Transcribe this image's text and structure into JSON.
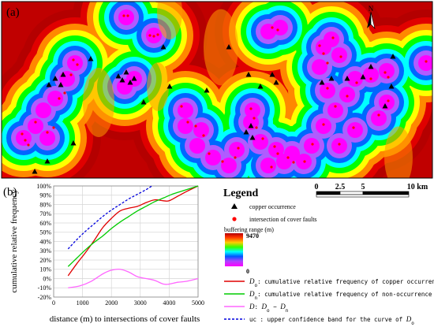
{
  "panel_a": {
    "label": "(a)",
    "north_letter": "N",
    "buffer_colors": [
      "#ff00ff",
      "#b05cff",
      "#0066ff",
      "#00ffff",
      "#00ff00",
      "#ffff00",
      "#ff8800",
      "#e00000",
      "#b40000"
    ],
    "occurrence_symbol": "triangle-icon",
    "fault_symbol": "red-dot-icon"
  },
  "panel_b_label": "(b)",
  "chart_data": {
    "type": "line",
    "xlabel": "distance (m) to intersections of cover faults",
    "ylabel": "cumulative relative frequency",
    "xlim": [
      0,
      5000
    ],
    "ylim": [
      -20,
      100
    ],
    "xticks": [
      0,
      1000,
      2000,
      3000,
      4000,
      5000
    ],
    "yticks": [
      -20,
      -10,
      0,
      10,
      20,
      30,
      40,
      50,
      60,
      70,
      80,
      90,
      100
    ],
    "series": [
      {
        "key": "Do",
        "color": "#e00000",
        "dash": false,
        "x": [
          500,
          800,
          1100,
          1400,
          1700,
          2000,
          2300,
          2600,
          2900,
          3200,
          3500,
          3800,
          4000,
          4300,
          4600,
          5000
        ],
        "y": [
          3,
          16,
          28,
          41,
          55,
          65,
          73,
          76,
          78,
          82,
          85,
          84,
          84,
          89,
          94,
          100
        ]
      },
      {
        "key": "Dn",
        "color": "#00cc00",
        "dash": false,
        "x": [
          500,
          800,
          1100,
          1400,
          1700,
          2000,
          2300,
          2600,
          2900,
          3200,
          3500,
          3800,
          4100,
          4400,
          4700,
          5000
        ],
        "y": [
          13,
          22,
          31,
          39,
          46,
          54,
          61,
          67,
          73,
          78,
          83,
          87,
          91,
          94,
          97,
          100
        ]
      },
      {
        "key": "D",
        "color": "#ff66ff",
        "dash": false,
        "x": [
          500,
          900,
          1300,
          1700,
          2000,
          2300,
          2600,
          2900,
          3200,
          3500,
          3800,
          4000,
          4300,
          4600,
          5000
        ],
        "y": [
          -10,
          -8,
          -3,
          5,
          9,
          10,
          7,
          2,
          0,
          -2,
          -6,
          -6,
          -4,
          -3,
          0
        ]
      },
      {
        "key": "uc",
        "color": "#0000dd",
        "dash": true,
        "x": [
          500,
          800,
          1100,
          1400,
          1700,
          2000,
          2300,
          2600,
          2900,
          3200,
          3400
        ],
        "y": [
          32,
          42,
          51,
          59,
          67,
          74,
          80,
          86,
          91,
          96,
          100
        ]
      }
    ]
  },
  "legend": {
    "title": "Legend",
    "copper_occurrence": "copper occurrence",
    "fault_intersection": "intersection of cover faults",
    "buffer_title": "buffering range (m)",
    "buffer_max": "9470",
    "buffer_min": "0",
    "line_do_symbol": "D",
    "line_do_sub": "o",
    "line_do_text": ": cumulative relative frequency of copper occurrence",
    "line_dn_symbol": "D",
    "line_dn_sub": "n",
    "line_dn_text": ": cumulative relative frequency of non-occurrence",
    "line_d_symbol": "D",
    "line_d_text": ":",
    "line_d_eq_a": "D",
    "line_d_eq_a_sub": "o",
    "line_d_eq_minus": " − ",
    "line_d_eq_b": "D",
    "line_d_eq_b_sub": "n",
    "line_uc_text": "uc : upper confidence band for the curve of",
    "line_uc_sym": "D",
    "line_uc_sub": "o",
    "colors": {
      "do": "#e00000",
      "dn": "#00cc00",
      "d": "#ff66ff",
      "uc": "#0000dd"
    }
  },
  "scalebar": {
    "labels": [
      "0",
      "2.5",
      "5",
      "10 km"
    ]
  }
}
